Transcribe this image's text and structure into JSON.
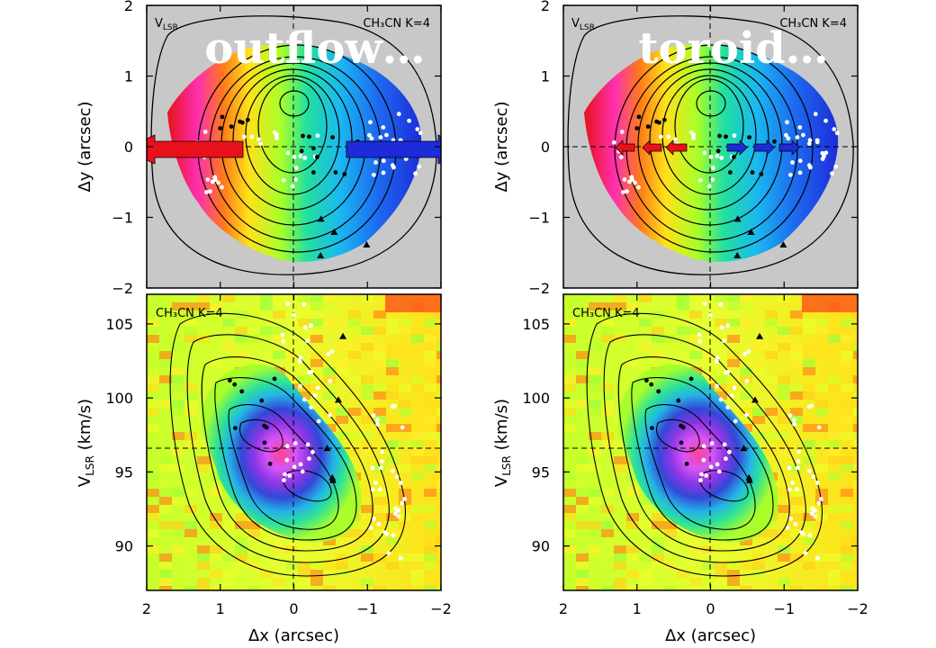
{
  "chart_data": [
    {
      "type": "heatmap",
      "panel": "left-top",
      "overlay_word": "outflow…",
      "corner_label_left": "V",
      "corner_label_left_sub": "LSR",
      "corner_label_right": "CH₃CN K=4",
      "xlim": [
        2,
        -2
      ],
      "ylim": [
        -2,
        2
      ],
      "ylabel": "Δy (arcsec)",
      "y_ticks": [
        "2",
        "1",
        "0",
        "−1",
        "−2"
      ],
      "arrows": "two long arrows along Δy=0: red pointing to +Δx, blue pointing to −Δx",
      "colors": {
        "background": "#c8c8c8",
        "red": "#e8111a",
        "blue": "#1d2bd9"
      }
    },
    {
      "type": "heatmap",
      "panel": "right-top",
      "overlay_word": "toroid…",
      "corner_label_left": "V",
      "corner_label_left_sub": "LSR",
      "corner_label_right": "CH₃CN K=4",
      "xlim": [
        2,
        -2
      ],
      "ylim": [
        -2,
        2
      ],
      "ylabel": "Δy (arcsec)",
      "y_ticks": [
        "2",
        "1",
        "0",
        "−1",
        "−2"
      ],
      "arrows": "short red arrows and short blue arrows along Δy=0"
    },
    {
      "type": "heatmap",
      "panel": "left-bottom",
      "corner_label": "CH₃CN K=4",
      "xlim": [
        2,
        -2
      ],
      "ylim": [
        87,
        107
      ],
      "xlabel": "Δx (arcsec)",
      "ylabel": "VLSR (km/s)",
      "x_ticks": [
        "2",
        "1",
        "0",
        "−1",
        "−2"
      ],
      "y_ticks": [
        "105",
        "100",
        "95",
        "90"
      ],
      "dashed_velocity": 96.5
    },
    {
      "type": "heatmap",
      "panel": "right-bottom",
      "corner_label": "CH₃CN K=4",
      "xlim": [
        2,
        -2
      ],
      "ylim": [
        87,
        107
      ],
      "xlabel": "Δx (arcsec)",
      "ylabel": "VLSR (km/s)",
      "x_ticks": [
        "2",
        "1",
        "0",
        "−1",
        "−2"
      ],
      "y_ticks": [
        "105",
        "100",
        "95",
        "90"
      ],
      "dashed_velocity": 96.5
    }
  ],
  "labels": {
    "top_y_ticks": [
      "2",
      "1",
      "0",
      "−1",
      "−2"
    ],
    "bottom_y_ticks": [
      "105",
      "100",
      "95",
      "90"
    ],
    "x_ticks": [
      "2",
      "1",
      "0",
      "−1",
      "−2"
    ],
    "xlabel": "Δx (arcsec)",
    "ylabel_top": "Δy (arcsec)",
    "ylabel_bottom_main": "V",
    "ylabel_bottom_sub": "LSR",
    "ylabel_bottom_unit": " (km/s)",
    "vlsr_main": "V",
    "vlsr_sub": "LSR",
    "ch3cn_label": "CH₃CN K=4",
    "word_left": "outflow…",
    "word_right": "toroid…"
  }
}
